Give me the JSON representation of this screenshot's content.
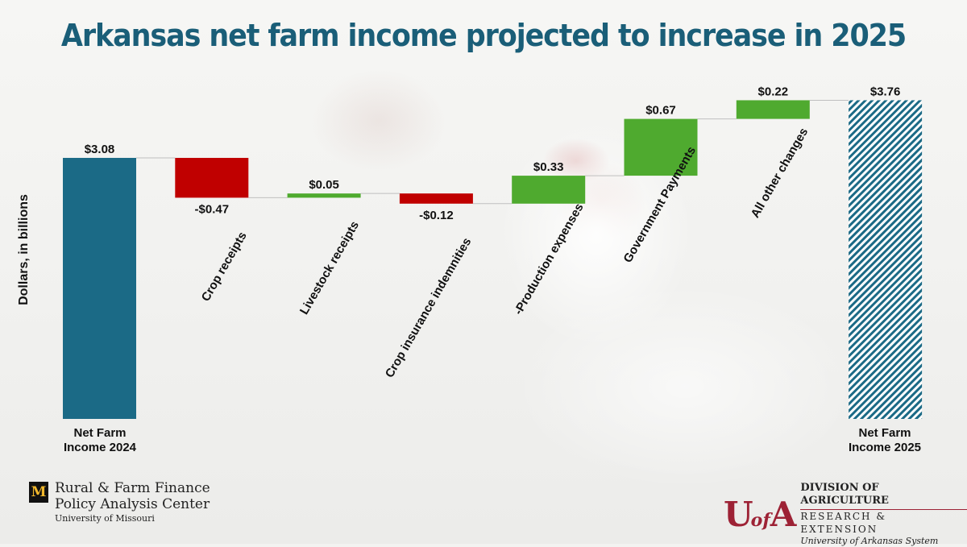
{
  "title": "Arkansas net farm income projected to increase in 2025",
  "chart_data": {
    "type": "bar",
    "subtype": "waterfall",
    "ylabel": "Dollars, in billions",
    "ylim": [
      0,
      3.9
    ],
    "categories": [
      "Net Farm Income 2024",
      "Crop receipts",
      "Livestock receipts",
      "Crop insurance indemnities",
      "-Production expenses",
      "Government Payments",
      "All other changes",
      "Net Farm Income 2025"
    ],
    "values": [
      3.08,
      -0.47,
      0.05,
      -0.12,
      0.33,
      0.67,
      0.22,
      3.76
    ],
    "value_labels": [
      "$3.08",
      "-$0.47",
      "$0.05",
      "-$0.12",
      "$0.33",
      "$0.67",
      "$0.22",
      "$3.76"
    ],
    "bar_kinds": [
      "total",
      "change",
      "change",
      "change",
      "change",
      "change",
      "change",
      "total"
    ],
    "end_labels": {
      "start": [
        "Net Farm",
        "Income 2024"
      ],
      "end": [
        "Net Farm",
        "Income 2025"
      ]
    },
    "colors": {
      "total": "#1b6a86",
      "increase": "#4faa2f",
      "decrease": "#c00000",
      "hatch": "#1b6a86",
      "connector": "#bfbfbf"
    }
  },
  "logos": {
    "left": {
      "mark": "M",
      "line1": "Rural & Farm Finance",
      "line2": "Policy Analysis Center",
      "line3": "University of Missouri"
    },
    "right": {
      "mark": "UofA",
      "line1": "DIVISION OF AGRICULTURE",
      "line2": "RESEARCH & EXTENSION",
      "line3": "University of Arkansas System"
    }
  }
}
